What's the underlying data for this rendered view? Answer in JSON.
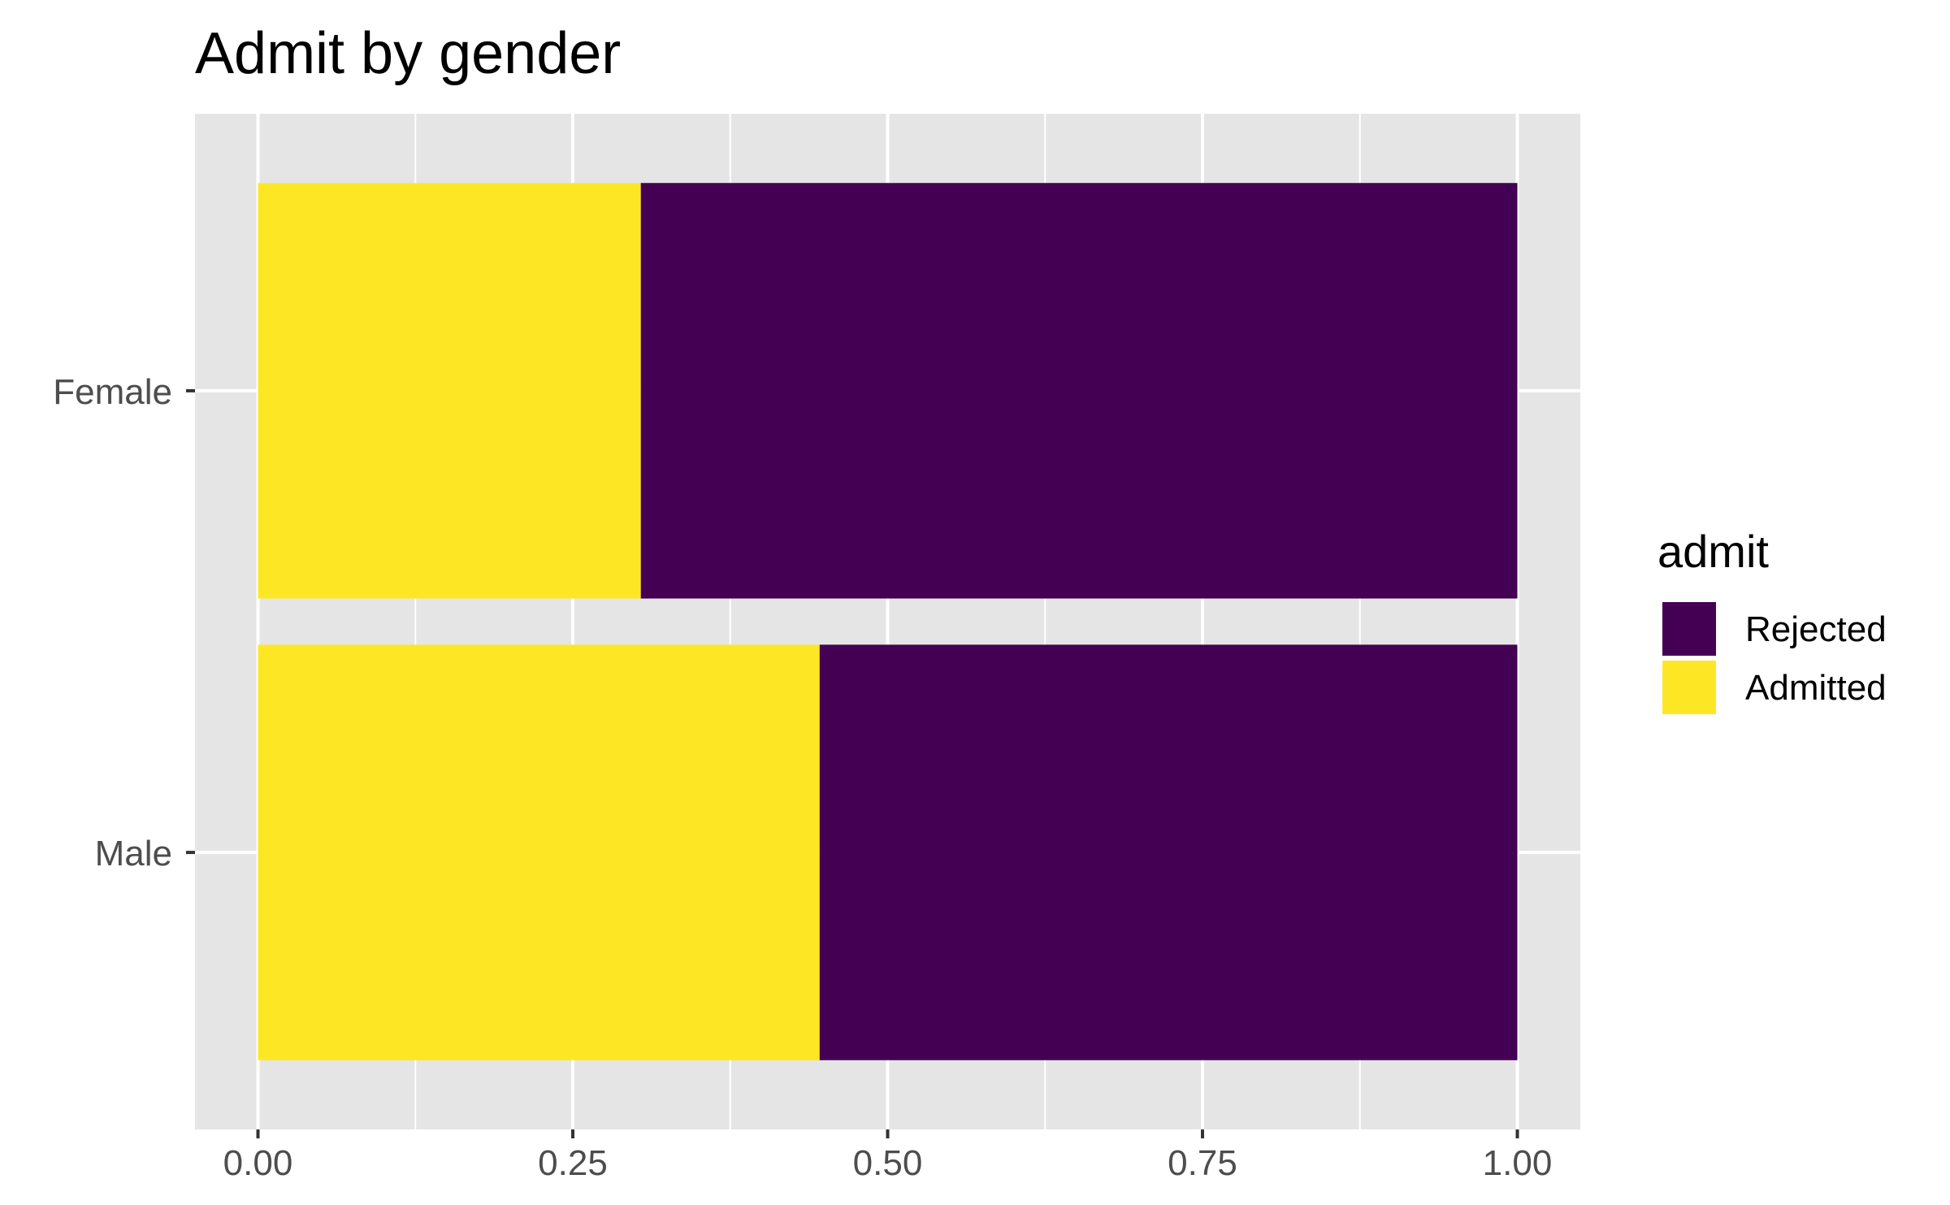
{
  "chart_data": {
    "type": "bar",
    "orientation": "horizontal",
    "stacked": true,
    "title": "Admit by gender",
    "xlabel": "",
    "ylabel": "",
    "categories": [
      "Male",
      "Female"
    ],
    "series": [
      {
        "name": "Admitted",
        "values": [
          0.446,
          0.304
        ],
        "color": "#FDE725"
      },
      {
        "name": "Rejected",
        "values": [
          0.554,
          0.696
        ],
        "color": "#440154"
      }
    ],
    "xlim": [
      -0.05,
      1.05
    ],
    "xticks": [
      0,
      0.25,
      0.5,
      0.75,
      1
    ],
    "xtick_labels": [
      "0.00",
      "0.25",
      "0.50",
      "0.75",
      "1.00"
    ],
    "grid": true,
    "legend": {
      "title": "admit",
      "placement": "right",
      "entries": [
        {
          "label": "Rejected",
          "color": "#440154"
        },
        {
          "label": "Admitted",
          "color": "#FDE725"
        }
      ]
    },
    "panel_background": "#E5E5E5"
  }
}
